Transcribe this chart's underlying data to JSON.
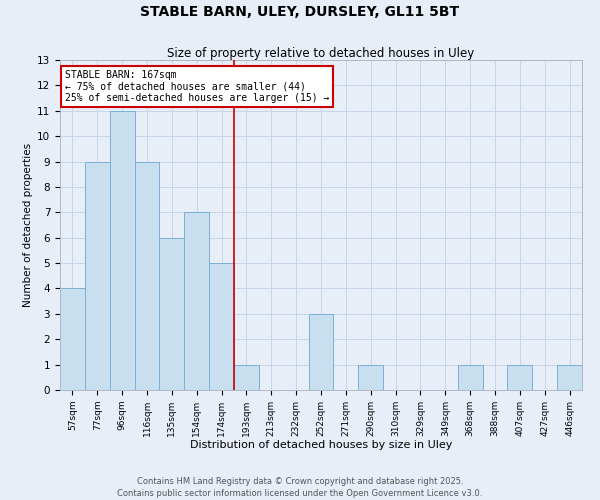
{
  "title": "STABLE BARN, ULEY, DURSLEY, GL11 5BT",
  "subtitle": "Size of property relative to detached houses in Uley",
  "xlabel": "Distribution of detached houses by size in Uley",
  "ylabel": "Number of detached properties",
  "bar_labels": [
    "57sqm",
    "77sqm",
    "96sqm",
    "116sqm",
    "135sqm",
    "154sqm",
    "174sqm",
    "193sqm",
    "213sqm",
    "232sqm",
    "252sqm",
    "271sqm",
    "290sqm",
    "310sqm",
    "329sqm",
    "349sqm",
    "368sqm",
    "388sqm",
    "407sqm",
    "427sqm",
    "446sqm"
  ],
  "bar_values": [
    4,
    9,
    11,
    9,
    6,
    7,
    5,
    1,
    0,
    0,
    3,
    0,
    1,
    0,
    0,
    0,
    1,
    0,
    1,
    0,
    1
  ],
  "bar_color": "#c8dff0",
  "bar_edge_color": "#7bafd4",
  "annotation_title": "STABLE BARN: 167sqm",
  "annotation_line1": "← 75% of detached houses are smaller (44)",
  "annotation_line2": "25% of semi-detached houses are larger (15) →",
  "annotation_box_facecolor": "#ffffff",
  "annotation_box_edgecolor": "#cc0000",
  "vline_color": "#cc0000",
  "vline_x": 6.5,
  "ylim": [
    0,
    13
  ],
  "yticks": [
    0,
    1,
    2,
    3,
    4,
    5,
    6,
    7,
    8,
    9,
    10,
    11,
    12,
    13
  ],
  "grid_color": "#c8d4e8",
  "bg_color": "#e8eef8",
  "footer1": "Contains HM Land Registry data © Crown copyright and database right 2025.",
  "footer2": "Contains public sector information licensed under the Open Government Licence v3.0."
}
